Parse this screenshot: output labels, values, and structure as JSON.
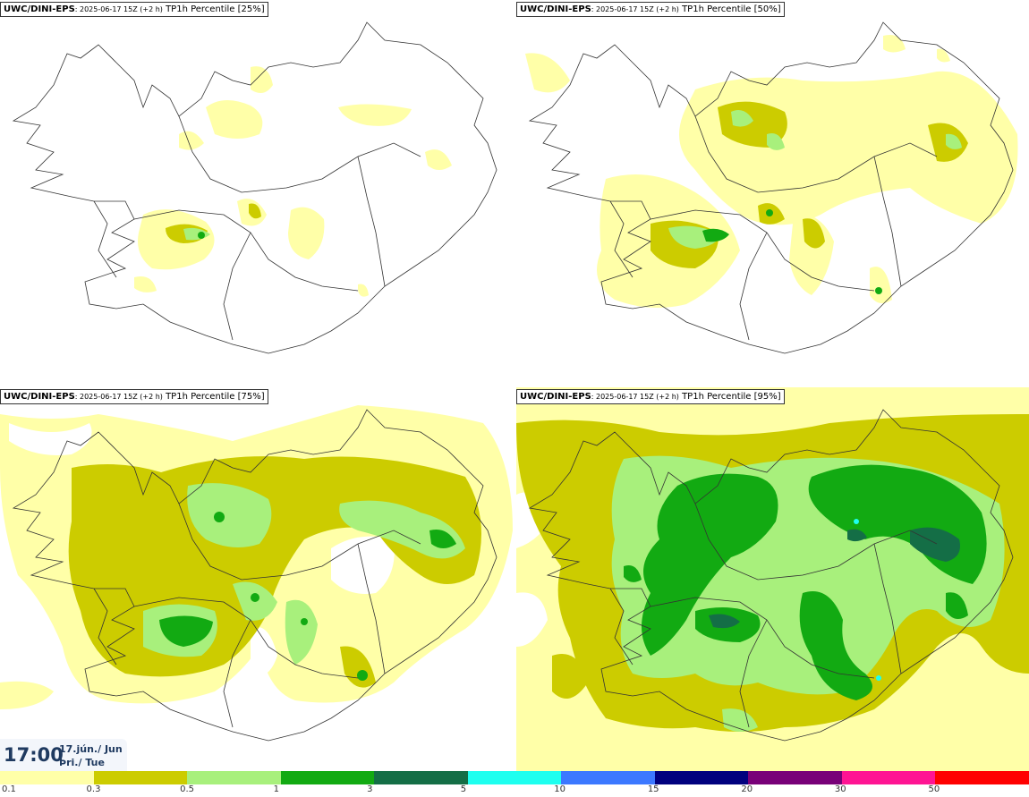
{
  "panels": [
    {
      "model": "UWC/DINI-EPS",
      "run": ": 2025-06-17 15Z (+2 h)",
      "field": " TP1h Percentile [25%]"
    },
    {
      "model": "UWC/DINI-EPS",
      "run": ": 2025-06-17 15Z (+2 h)",
      "field": " TP1h Percentile [50%]"
    },
    {
      "model": "UWC/DINI-EPS",
      "run": ": 2025-06-17 15Z (+2 h)",
      "field": " TP1h Percentile [75%]"
    },
    {
      "model": "UWC/DINI-EPS",
      "run": ": 2025-06-17 15Z (+2 h)",
      "field": " TP1h Percentile [95%]"
    }
  ],
  "valid_time": {
    "time": "17:00",
    "date_line1": "17.jún./ Jun",
    "date_line2": "Þri./ Tue"
  },
  "colorbar": {
    "ticks": [
      "0.1",
      "0.3",
      "0.5",
      "1",
      "3",
      "5",
      "10",
      "15",
      "20",
      "30",
      "50"
    ],
    "colors": [
      "#ffffa8",
      "#cccc00",
      "#a8f07c",
      "#12aa12",
      "#146e46",
      "#1effef",
      "#3c78ff",
      "#00007e",
      "#780078",
      "#ff1493",
      "#ff0000"
    ]
  }
}
